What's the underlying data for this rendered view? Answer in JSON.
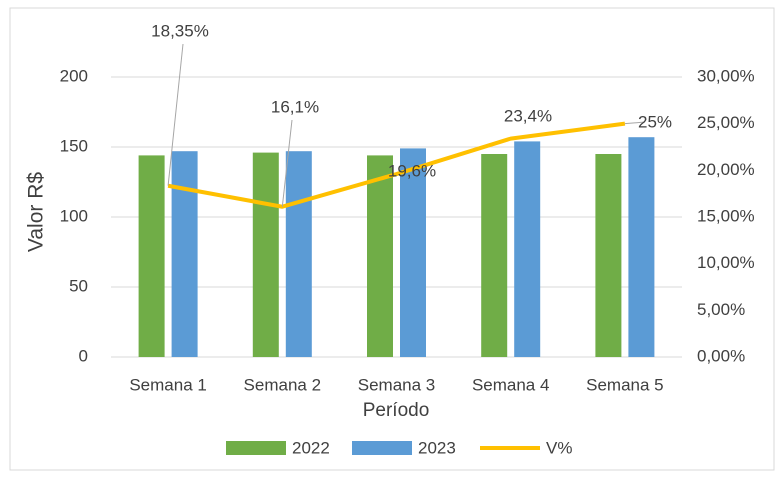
{
  "chart_data": {
    "type": "bar",
    "categories": [
      "Semana 1",
      "Semana 2",
      "Semana 3",
      "Semana 4",
      "Semana 5"
    ],
    "series": [
      {
        "name": "2022",
        "color": "#70ad47",
        "values": [
          144,
          146,
          144,
          145,
          145
        ]
      },
      {
        "name": "2023",
        "color": "#5b9bd5",
        "values": [
          147,
          147,
          149,
          154,
          157
        ]
      },
      {
        "name": "V%",
        "color": "#ffc000",
        "type": "line",
        "axis": "y2",
        "values": [
          18.35,
          16.1,
          19.6,
          23.4,
          25
        ],
        "value_labels": [
          "18,35%",
          "16,1%",
          "19,6%",
          "23,4%",
          "25%"
        ]
      }
    ],
    "ylabel": "Valor R$",
    "xlabel": "Período",
    "ylim": [
      0,
      200
    ],
    "yticks": [
      0,
      50,
      100,
      150,
      200
    ],
    "y2lim": [
      0,
      30
    ],
    "y2ticks": [
      {
        "value": 0,
        "label": "0,00%"
      },
      {
        "value": 5,
        "label": "5,00%"
      },
      {
        "value": 10,
        "label": "10,00%"
      },
      {
        "value": 15,
        "label": "15,00%"
      },
      {
        "value": 20,
        "label": "20,00%"
      },
      {
        "value": 25,
        "label": "25,00%"
      },
      {
        "value": 30,
        "label": "30,00%"
      }
    ],
    "grid": true,
    "legend": "bottom"
  }
}
